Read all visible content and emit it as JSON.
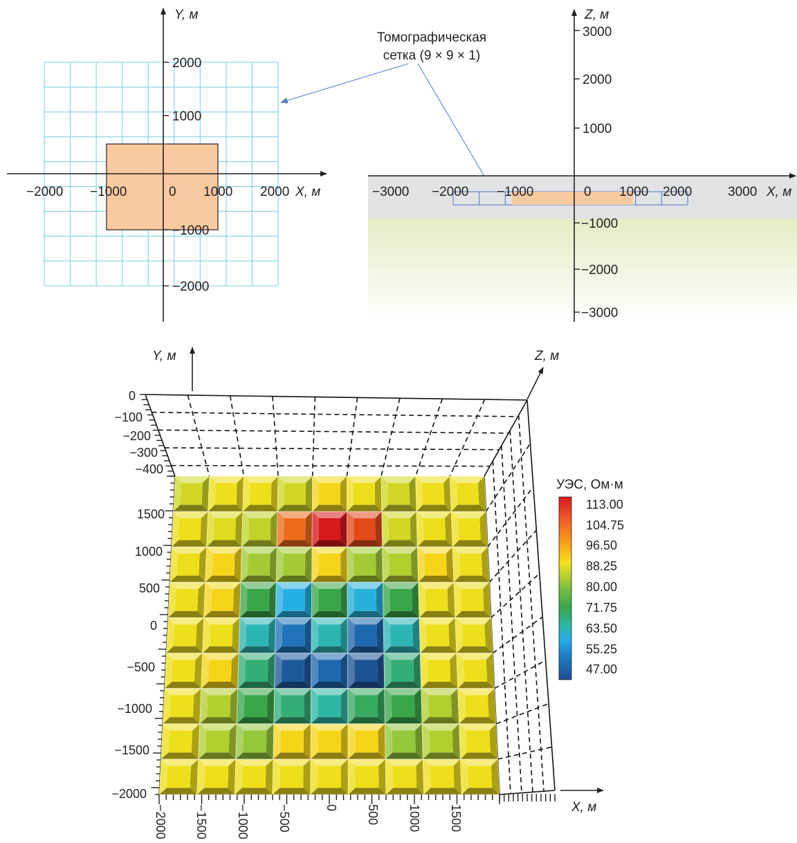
{
  "top_left_plan": {
    "axis_x_label": "X, м",
    "axis_y_label": "Y, м",
    "x_ticks": [
      "−2000",
      "−1000",
      "0",
      "1000",
      "2000"
    ],
    "y_ticks": [
      "2000",
      "1000",
      "−1000",
      "−2000"
    ],
    "grid_extent_m": [
      -2000,
      2000
    ],
    "grid_cells": 9,
    "body_x_m": [
      -1000,
      1000
    ],
    "body_y_m": [
      -1000,
      500
    ],
    "body_color": "#f9c9a0",
    "grid_color": "#7fd0e6"
  },
  "annotation": {
    "line1": "Томографическая",
    "line2": "сетка (9 × 9 × 1)"
  },
  "top_right_section": {
    "axis_x_label": "X, м",
    "axis_z_label": "Z, м",
    "x_ticks": [
      "−3000",
      "−2000",
      "−1000",
      "0",
      "1000",
      "2000",
      "3000"
    ],
    "z_ticks_up": [
      "3000",
      "2000",
      "1000"
    ],
    "z_ticks_down": [
      "−1000",
      "−2000",
      "−3000"
    ],
    "grey_layer_color": "#e2e3e5",
    "green_layer_color": "#e4ecc4",
    "body_color": "#f9c9a0",
    "grid_color": "#5b7fc4"
  },
  "bottom_3d": {
    "axis_x_label": "X, м",
    "axis_y_label": "Y, м",
    "axis_z_label": "Z, м",
    "z_ticks": [
      "0",
      "−100",
      "−200",
      "−300",
      "−400"
    ],
    "y_ticks": [
      "1500",
      "1000",
      "500",
      "0",
      "−500",
      "−1000",
      "−1500",
      "−2000"
    ],
    "x_ticks": [
      "−2000",
      "−1500",
      "−1000",
      "−500",
      "0",
      "500",
      "1000",
      "1500"
    ],
    "grid_rows": [
      [
        94,
        96,
        96,
        94,
        98,
        96,
        94,
        96,
        96
      ],
      [
        96,
        95,
        93,
        108,
        113,
        110,
        94,
        96,
        96
      ],
      [
        96,
        98,
        91,
        91,
        98,
        91,
        92,
        98,
        96
      ],
      [
        96,
        98,
        80,
        64,
        80,
        65,
        80,
        96,
        96
      ],
      [
        96,
        96,
        70,
        54,
        70,
        52,
        70,
        96,
        96
      ],
      [
        96,
        98,
        76,
        49,
        52,
        48,
        76,
        96,
        96
      ],
      [
        96,
        92,
        80,
        76,
        72,
        78,
        80,
        92,
        96
      ],
      [
        96,
        92,
        90,
        98,
        98,
        98,
        90,
        92,
        96
      ],
      [
        96,
        96,
        96,
        96,
        96,
        96,
        96,
        96,
        96
      ]
    ]
  },
  "colorbar": {
    "title": "УЭС, Ом·м",
    "labels": [
      "113.00",
      "104.75",
      "96.50",
      "88.25",
      "80.00",
      "71.75",
      "63.50",
      "55.25",
      "47.00"
    ],
    "min": 47,
    "max": 113
  }
}
